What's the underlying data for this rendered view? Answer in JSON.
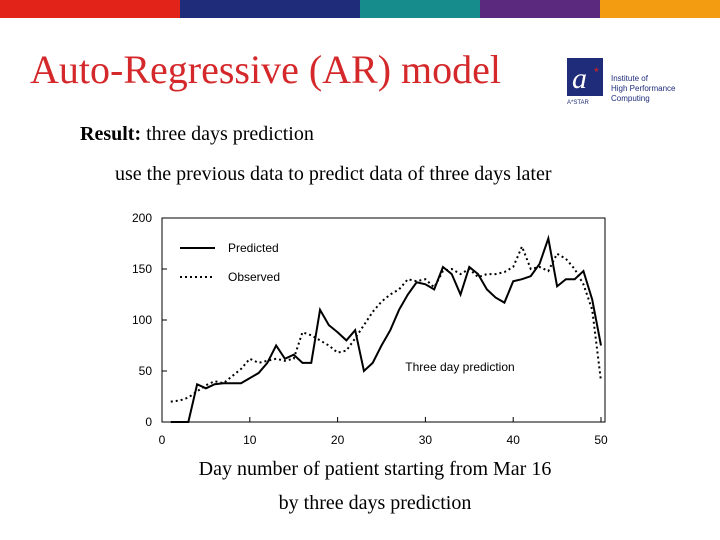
{
  "slide": {
    "title": "Auto-Regressive (AR) model",
    "logo": {
      "lines": [
        "Institute of",
        "High Performance",
        "Computing"
      ],
      "org": "A*STAR"
    },
    "result_label": "Result:",
    "result_text": "three days prediction",
    "description": "use the previous data to predict data of three days later",
    "caption": [
      "Day number of patient starting from Mar 16",
      "by three days prediction"
    ]
  },
  "chart_data": {
    "type": "line",
    "x": [
      1,
      2,
      3,
      4,
      5,
      6,
      7,
      8,
      9,
      10,
      11,
      12,
      13,
      14,
      15,
      16,
      17,
      18,
      19,
      20,
      21,
      22,
      23,
      24,
      25,
      26,
      27,
      28,
      29,
      30,
      31,
      32,
      33,
      34,
      35,
      36,
      37,
      38,
      39,
      40,
      41,
      42,
      43,
      44,
      45,
      46,
      47,
      48,
      49,
      50
    ],
    "series": [
      {
        "name": "Predicted",
        "color": "#000000",
        "linestyle": "solid",
        "values": [
          0,
          0,
          0,
          37,
          33,
          37,
          38,
          38,
          38,
          43,
          48,
          58,
          75,
          62,
          66,
          58,
          58,
          110,
          95,
          88,
          80,
          90,
          50,
          58,
          75,
          90,
          110,
          125,
          137,
          135,
          130,
          152,
          145,
          125,
          152,
          145,
          130,
          122,
          117,
          138,
          140,
          143,
          155,
          180,
          133,
          140,
          140,
          148,
          120,
          75
        ]
      },
      {
        "name": "Observed",
        "color": "#000000",
        "linestyle": "dotted",
        "values": [
          20,
          21,
          24,
          30,
          36,
          40,
          38,
          45,
          52,
          62,
          58,
          60,
          62,
          60,
          62,
          88,
          85,
          80,
          75,
          68,
          70,
          82,
          95,
          108,
          118,
          125,
          130,
          140,
          138,
          140,
          132,
          148,
          150,
          145,
          150,
          142,
          145,
          145,
          147,
          152,
          172,
          150,
          152,
          148,
          165,
          160,
          150,
          135,
          110,
          40
        ]
      }
    ],
    "xlim": [
      0,
      50
    ],
    "xticks": [
      0,
      10,
      20,
      30,
      40,
      50
    ],
    "ylim": [
      0,
      200
    ],
    "yticks": [
      0,
      50,
      100,
      150,
      200
    ],
    "grid": false,
    "legend": "upper left",
    "annotation": "Three day prediction"
  }
}
